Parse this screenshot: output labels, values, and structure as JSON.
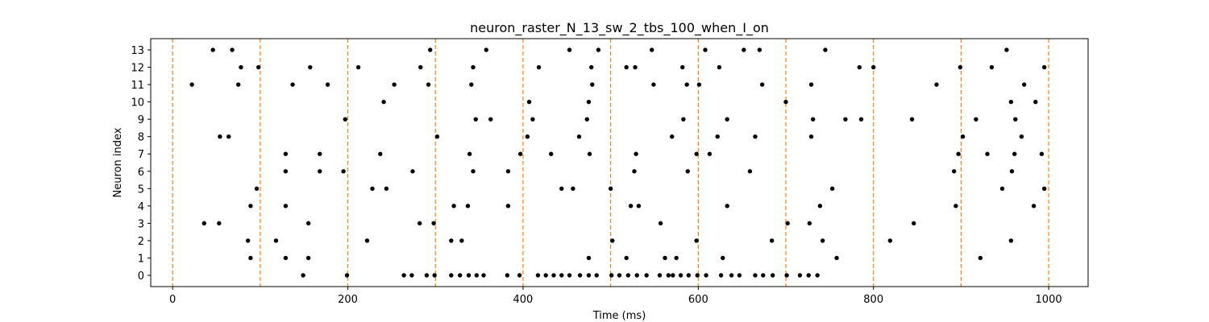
{
  "chart_data": {
    "type": "scatter",
    "title": "neuron_raster_N_13_sw_2_tbs_100_when_I_on",
    "xlabel": "Time (ms)",
    "ylabel": "Neuron index",
    "xlim": [
      -25,
      1045
    ],
    "ylim": [
      -0.65,
      13.65
    ],
    "xticks": [
      0,
      200,
      400,
      600,
      800,
      1000
    ],
    "yticks": [
      0,
      1,
      2,
      3,
      4,
      5,
      6,
      7,
      8,
      9,
      10,
      11,
      12,
      13
    ],
    "grid": false,
    "marker_color": "#000000",
    "vlines": {
      "x": [
        0,
        100,
        200,
        300,
        400,
        500,
        600,
        700,
        800,
        900,
        1000
      ],
      "color": "#ff7f0e",
      "style": "dashed"
    },
    "series": [
      {
        "points": [
          [
            0,
            149
          ],
          [
            0,
            199
          ],
          [
            0,
            264
          ],
          [
            0,
            273
          ],
          [
            0,
            290
          ],
          [
            0,
            299
          ],
          [
            0,
            318
          ],
          [
            0,
            328
          ],
          [
            0,
            338
          ],
          [
            0,
            347
          ],
          [
            0,
            355
          ],
          [
            0,
            382
          ],
          [
            0,
            396
          ],
          [
            0,
            417
          ],
          [
            0,
            426
          ],
          [
            0,
            435
          ],
          [
            0,
            444
          ],
          [
            0,
            453
          ],
          [
            0,
            465
          ],
          [
            0,
            475
          ],
          [
            0,
            484
          ],
          [
            0,
            501
          ],
          [
            0,
            510
          ],
          [
            0,
            520
          ],
          [
            0,
            530
          ],
          [
            0,
            541
          ],
          [
            0,
            556
          ],
          [
            0,
            566
          ],
          [
            0,
            571
          ],
          [
            0,
            580
          ],
          [
            0,
            589
          ],
          [
            0,
            599
          ],
          [
            0,
            609
          ],
          [
            0,
            626
          ],
          [
            0,
            638
          ],
          [
            0,
            647
          ],
          [
            0,
            665
          ],
          [
            0,
            674
          ],
          [
            0,
            685
          ],
          [
            0,
            701
          ],
          [
            0,
            716
          ],
          [
            0,
            726
          ],
          [
            0,
            736
          ],
          [
            1,
            89
          ],
          [
            1,
            129
          ],
          [
            1,
            155
          ],
          [
            1,
            475
          ],
          [
            1,
            518
          ],
          [
            1,
            562
          ],
          [
            1,
            575
          ],
          [
            1,
            628
          ],
          [
            1,
            758
          ],
          [
            1,
            922
          ],
          [
            2,
            86
          ],
          [
            2,
            118
          ],
          [
            2,
            222
          ],
          [
            2,
            318
          ],
          [
            2,
            330
          ],
          [
            2,
            502
          ],
          [
            2,
            598
          ],
          [
            2,
            684
          ],
          [
            2,
            742
          ],
          [
            2,
            819
          ],
          [
            2,
            957
          ],
          [
            3,
            36
          ],
          [
            3,
            53
          ],
          [
            3,
            155
          ],
          [
            3,
            282
          ],
          [
            3,
            298
          ],
          [
            3,
            557
          ],
          [
            3,
            702
          ],
          [
            3,
            727
          ],
          [
            3,
            846
          ],
          [
            4,
            89
          ],
          [
            4,
            129
          ],
          [
            4,
            321
          ],
          [
            4,
            337
          ],
          [
            4,
            383
          ],
          [
            4,
            523
          ],
          [
            4,
            532
          ],
          [
            4,
            633
          ],
          [
            4,
            739
          ],
          [
            4,
            894
          ],
          [
            4,
            983
          ],
          [
            5,
            96
          ],
          [
            5,
            228
          ],
          [
            5,
            244
          ],
          [
            5,
            444
          ],
          [
            5,
            457
          ],
          [
            5,
            500
          ],
          [
            5,
            753
          ],
          [
            5,
            947
          ],
          [
            5,
            995
          ],
          [
            6,
            129
          ],
          [
            6,
            168
          ],
          [
            6,
            195
          ],
          [
            6,
            274
          ],
          [
            6,
            343
          ],
          [
            6,
            383
          ],
          [
            6,
            527
          ],
          [
            6,
            588
          ],
          [
            6,
            659
          ],
          [
            6,
            892
          ],
          [
            6,
            958
          ],
          [
            7,
            129
          ],
          [
            7,
            168
          ],
          [
            7,
            237
          ],
          [
            7,
            339
          ],
          [
            7,
            397
          ],
          [
            7,
            432
          ],
          [
            7,
            476
          ],
          [
            7,
            529
          ],
          [
            7,
            598
          ],
          [
            7,
            613
          ],
          [
            7,
            897
          ],
          [
            7,
            930
          ],
          [
            7,
            961
          ],
          [
            7,
            992
          ],
          [
            8,
            54
          ],
          [
            8,
            64
          ],
          [
            8,
            302
          ],
          [
            8,
            405
          ],
          [
            8,
            464
          ],
          [
            8,
            570
          ],
          [
            8,
            622
          ],
          [
            8,
            665
          ],
          [
            8,
            729
          ],
          [
            8,
            902
          ],
          [
            8,
            969
          ],
          [
            9,
            197
          ],
          [
            9,
            346
          ],
          [
            9,
            363
          ],
          [
            9,
            411
          ],
          [
            9,
            473
          ],
          [
            9,
            583
          ],
          [
            9,
            633
          ],
          [
            9,
            731
          ],
          [
            9,
            768
          ],
          [
            9,
            786
          ],
          [
            9,
            844
          ],
          [
            9,
            917
          ],
          [
            9,
            962
          ],
          [
            10,
            241
          ],
          [
            10,
            407
          ],
          [
            10,
            475
          ],
          [
            10,
            700
          ],
          [
            10,
            957
          ],
          [
            10,
            985
          ],
          [
            11,
            22
          ],
          [
            11,
            75
          ],
          [
            11,
            137
          ],
          [
            11,
            177
          ],
          [
            11,
            253
          ],
          [
            11,
            292
          ],
          [
            11,
            341
          ],
          [
            11,
            479
          ],
          [
            11,
            549
          ],
          [
            11,
            587
          ],
          [
            11,
            601
          ],
          [
            11,
            673
          ],
          [
            11,
            729
          ],
          [
            11,
            872
          ],
          [
            11,
            972
          ],
          [
            12,
            78
          ],
          [
            12,
            98
          ],
          [
            12,
            157
          ],
          [
            12,
            212
          ],
          [
            12,
            283
          ],
          [
            12,
            343
          ],
          [
            12,
            418
          ],
          [
            12,
            478
          ],
          [
            12,
            518
          ],
          [
            12,
            528
          ],
          [
            12,
            582
          ],
          [
            12,
            624
          ],
          [
            12,
            784
          ],
          [
            12,
            800
          ],
          [
            12,
            899
          ],
          [
            12,
            935
          ],
          [
            12,
            995
          ],
          [
            13,
            46
          ],
          [
            13,
            68
          ],
          [
            13,
            294
          ],
          [
            13,
            358
          ],
          [
            13,
            453
          ],
          [
            13,
            486
          ],
          [
            13,
            547
          ],
          [
            13,
            608
          ],
          [
            13,
            652
          ],
          [
            13,
            670
          ],
          [
            13,
            745
          ],
          [
            13,
            952
          ]
        ]
      }
    ]
  }
}
